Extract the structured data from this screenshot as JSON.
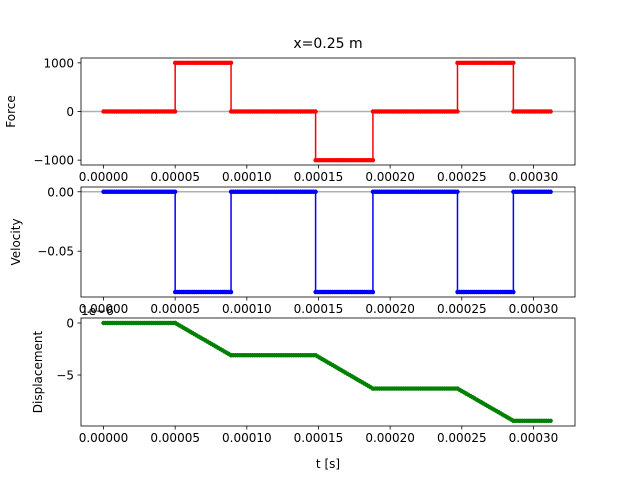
{
  "figure": {
    "title": "x=0.25 m",
    "xlabel": "t [s]"
  },
  "chart_data": [
    {
      "type": "line",
      "ylabel": "Force",
      "color": "#ff0000",
      "xlim": [
        -1.57e-05,
        0.000329
      ],
      "ylim": [
        -1100,
        1100
      ],
      "xticks": [
        0,
        5e-05,
        0.0001,
        0.00015,
        0.0002,
        0.00025,
        0.0003
      ],
      "xtick_labels": [
        "0.00000",
        "0.00005",
        "0.00010",
        "0.00015",
        "0.00020",
        "0.00025",
        "0.00030"
      ],
      "yticks": [
        1000,
        0,
        -1000
      ],
      "ytick_labels": [
        "1000",
        "0",
        "−1000"
      ],
      "zero_line": true,
      "series": [
        {
          "segments": [
            {
              "t0": 0,
              "t1": 5e-05,
              "v0": 0,
              "v1": 0
            },
            {
              "t0": 5e-05,
              "t1": 8.9e-05,
              "v0": 1000,
              "v1": 1000
            },
            {
              "t0": 8.9e-05,
              "t1": 0.000148,
              "v0": 0,
              "v1": 0
            },
            {
              "t0": 0.000148,
              "t1": 0.000188,
              "v0": -1000,
              "v1": -1000
            },
            {
              "t0": 0.000188,
              "t1": 0.000247,
              "v0": 0,
              "v1": 0
            },
            {
              "t0": 0.000247,
              "t1": 0.000286,
              "v0": 1000,
              "v1": 1000
            },
            {
              "t0": 0.000286,
              "t1": 0.000312,
              "v0": 0,
              "v1": 0
            }
          ]
        }
      ]
    },
    {
      "type": "line",
      "ylabel": "Velocity",
      "color": "#0000ff",
      "xlim": [
        -1.57e-05,
        0.000329
      ],
      "ylim": [
        -0.0885,
        0.004
      ],
      "xticks": [
        0,
        5e-05,
        0.0001,
        0.00015,
        0.0002,
        0.00025,
        0.0003
      ],
      "xtick_labels": [
        "0.00000",
        "0.00005",
        "0.00010",
        "0.00015",
        "0.00020",
        "0.00025",
        "0.00030"
      ],
      "yticks": [
        0,
        -0.05
      ],
      "ytick_labels": [
        "0.00",
        "−0.05"
      ],
      "zero_line": true,
      "series": [
        {
          "segments": [
            {
              "t0": 0,
              "t1": 5e-05,
              "v0": 0,
              "v1": 0
            },
            {
              "t0": 5e-05,
              "t1": 8.9e-05,
              "v0": -0.0843,
              "v1": -0.0843
            },
            {
              "t0": 8.9e-05,
              "t1": 0.000148,
              "v0": 0,
              "v1": 0
            },
            {
              "t0": 0.000148,
              "t1": 0.000188,
              "v0": -0.0843,
              "v1": -0.0843
            },
            {
              "t0": 0.000188,
              "t1": 0.000247,
              "v0": 0,
              "v1": 0
            },
            {
              "t0": 0.000247,
              "t1": 0.000286,
              "v0": -0.0843,
              "v1": -0.0843
            },
            {
              "t0": 0.000286,
              "t1": 0.000312,
              "v0": 0,
              "v1": 0
            }
          ]
        }
      ]
    },
    {
      "type": "line",
      "ylabel": "Displacement",
      "offset_label": "1e−6",
      "color": "#008000",
      "xlim": [
        -1.57e-05,
        0.000329
      ],
      "ylim": [
        -9.9,
        0.48
      ],
      "xticks": [
        0,
        5e-05,
        0.0001,
        0.00015,
        0.0002,
        0.00025,
        0.0003
      ],
      "xtick_labels": [
        "0.00000",
        "0.00005",
        "0.00010",
        "0.00015",
        "0.00020",
        "0.00025",
        "0.00030"
      ],
      "yticks": [
        0,
        -5
      ],
      "ytick_labels": [
        "0",
        "−5"
      ],
      "zero_line": false,
      "series": [
        {
          "segments": [
            {
              "t0": 0,
              "t1": 5e-05,
              "v0": 0,
              "v1": 0
            },
            {
              "t0": 5e-05,
              "t1": 8.9e-05,
              "v0": 0,
              "v1": -3.1
            },
            {
              "t0": 8.9e-05,
              "t1": 0.000148,
              "v0": -3.1,
              "v1": -3.1
            },
            {
              "t0": 0.000148,
              "t1": 0.000188,
              "v0": -3.1,
              "v1": -6.3
            },
            {
              "t0": 0.000188,
              "t1": 0.000247,
              "v0": -6.3,
              "v1": -6.3
            },
            {
              "t0": 0.000247,
              "t1": 0.000286,
              "v0": -6.3,
              "v1": -9.4
            },
            {
              "t0": 0.000286,
              "t1": 0.000312,
              "v0": -9.4,
              "v1": -9.4
            }
          ]
        }
      ]
    }
  ]
}
